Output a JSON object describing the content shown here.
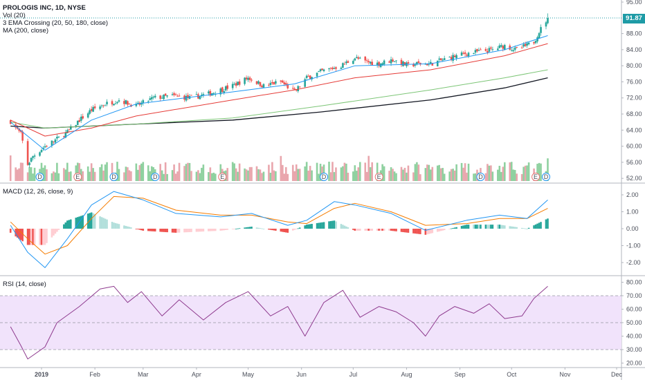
{
  "header": {
    "symbol_line": "PROLOGIS INC, 1D, NYSE",
    "vol_line": "Vol (20)",
    "ema_line": "3 EMA Crossing (20, 50, 180, close)",
    "ma_line": "MA (200, close)"
  },
  "last_price_label": "91.87",
  "panes": {
    "macd_label": "MACD (12, 26, close, 9)",
    "rsi_label": "RSI (14, close)"
  },
  "colors": {
    "candle_up": "#26a69a",
    "candle_down": "#ef5350",
    "ema_fast": "#2196f3",
    "ema_mid": "#e53935",
    "ema_slow": "#7cc576",
    "ma200": "#131722",
    "macd_line": "#2196f3",
    "signal_line": "#f57c00",
    "rsi_line": "#8e3a8e",
    "rsi_band": "#f1e3fb",
    "last_price": "#1e9ba6"
  },
  "chart_data": [
    {
      "type": "candlestick",
      "title": "PROLOGIS INC, 1D, NYSE",
      "x_ticks": [
        "2019",
        "Feb",
        "Mar",
        "Apr",
        "May",
        "Jun",
        "Jul",
        "Aug",
        "Sep",
        "Oct",
        "Nov",
        "Dec"
      ],
      "y_ticks": [
        "52.00",
        "56.00",
        "60.00",
        "64.00",
        "68.00",
        "72.00",
        "76.00",
        "80.00",
        "84.00",
        "88.00",
        "95.00"
      ],
      "ylim": [
        51,
        96
      ],
      "last_price": 91.87,
      "close_series": [
        {
          "date": "2018-12-14",
          "value": 66.2
        },
        {
          "date": "2018-12-20",
          "value": 63.0
        },
        {
          "date": "2018-12-24",
          "value": 55.5
        },
        {
          "date": "2018-12-27",
          "value": 57.5
        },
        {
          "date": "2019-01-03",
          "value": 60.0
        },
        {
          "date": "2019-01-09",
          "value": 61.5
        },
        {
          "date": "2019-01-16",
          "value": 63.5
        },
        {
          "date": "2019-01-23",
          "value": 66.5
        },
        {
          "date": "2019-01-30",
          "value": 69.0
        },
        {
          "date": "2019-02-07",
          "value": 70.5
        },
        {
          "date": "2019-02-15",
          "value": 71.5
        },
        {
          "date": "2019-02-25",
          "value": 70.0
        },
        {
          "date": "2019-03-07",
          "value": 72.0
        },
        {
          "date": "2019-03-18",
          "value": 72.5
        },
        {
          "date": "2019-03-28",
          "value": 72.0
        },
        {
          "date": "2019-04-08",
          "value": 73.0
        },
        {
          "date": "2019-04-22",
          "value": 75.0
        },
        {
          "date": "2019-05-01",
          "value": 77.0
        },
        {
          "date": "2019-05-10",
          "value": 75.0
        },
        {
          "date": "2019-05-20",
          "value": 76.0
        },
        {
          "date": "2019-05-28",
          "value": 73.5
        },
        {
          "date": "2019-06-04",
          "value": 77.0
        },
        {
          "date": "2019-06-12",
          "value": 78.5
        },
        {
          "date": "2019-06-24",
          "value": 80.0
        },
        {
          "date": "2019-07-02",
          "value": 82.0
        },
        {
          "date": "2019-07-08",
          "value": 81.0
        },
        {
          "date": "2019-07-16",
          "value": 80.5
        },
        {
          "date": "2019-07-24",
          "value": 81.5
        },
        {
          "date": "2019-08-02",
          "value": 80.0
        },
        {
          "date": "2019-08-07",
          "value": 80.5
        },
        {
          "date": "2019-08-15",
          "value": 80.5
        },
        {
          "date": "2019-08-26",
          "value": 82.0
        },
        {
          "date": "2019-09-04",
          "value": 83.0
        },
        {
          "date": "2019-09-12",
          "value": 83.5
        },
        {
          "date": "2019-09-20",
          "value": 84.0
        },
        {
          "date": "2019-09-27",
          "value": 85.0
        },
        {
          "date": "2019-10-03",
          "value": 84.0
        },
        {
          "date": "2019-10-10",
          "value": 85.0
        },
        {
          "date": "2019-10-14",
          "value": 86.0
        },
        {
          "date": "2019-10-17",
          "value": 88.5
        },
        {
          "date": "2019-10-22",
          "value": 91.87
        }
      ],
      "ema20": [
        {
          "date": "2018-12-14",
          "value": 66.0
        },
        {
          "date": "2019-01-03",
          "value": 59.0
        },
        {
          "date": "2019-01-30",
          "value": 66.5
        },
        {
          "date": "2019-02-25",
          "value": 70.5
        },
        {
          "date": "2019-04-22",
          "value": 73.5
        },
        {
          "date": "2019-05-28",
          "value": 75.5
        },
        {
          "date": "2019-07-02",
          "value": 80.0
        },
        {
          "date": "2019-08-15",
          "value": 80.5
        },
        {
          "date": "2019-09-27",
          "value": 84.0
        },
        {
          "date": "2019-10-22",
          "value": 87.5
        }
      ],
      "ema50": [
        {
          "date": "2018-12-14",
          "value": 66.5
        },
        {
          "date": "2019-01-03",
          "value": 62.5
        },
        {
          "date": "2019-01-30",
          "value": 64.5
        },
        {
          "date": "2019-02-25",
          "value": 67.5
        },
        {
          "date": "2019-04-22",
          "value": 71.5
        },
        {
          "date": "2019-05-28",
          "value": 74.0
        },
        {
          "date": "2019-07-02",
          "value": 77.0
        },
        {
          "date": "2019-08-15",
          "value": 79.0
        },
        {
          "date": "2019-09-27",
          "value": 82.5
        },
        {
          "date": "2019-10-22",
          "value": 85.5
        }
      ],
      "ema180": [
        {
          "date": "2018-12-14",
          "value": 66.0
        },
        {
          "date": "2019-01-03",
          "value": 64.5
        },
        {
          "date": "2019-02-25",
          "value": 65.5
        },
        {
          "date": "2019-04-22",
          "value": 67.0
        },
        {
          "date": "2019-06-12",
          "value": 70.0
        },
        {
          "date": "2019-08-15",
          "value": 74.0
        },
        {
          "date": "2019-09-27",
          "value": 77.0
        },
        {
          "date": "2019-10-22",
          "value": 79.0
        }
      ],
      "ma200": [
        {
          "date": "2018-12-14",
          "value": 65.0
        },
        {
          "date": "2019-01-03",
          "value": 64.5
        },
        {
          "date": "2019-02-25",
          "value": 65.5
        },
        {
          "date": "2019-04-22",
          "value": 66.5
        },
        {
          "date": "2019-06-12",
          "value": 68.5
        },
        {
          "date": "2019-08-15",
          "value": 71.5
        },
        {
          "date": "2019-09-27",
          "value": 74.5
        },
        {
          "date": "2019-10-22",
          "value": 77.0
        }
      ],
      "event_markers": [
        {
          "date": "2018-12-31",
          "label": "D"
        },
        {
          "date": "2019-01-22",
          "label": "E"
        },
        {
          "date": "2019-02-12",
          "label": "D"
        },
        {
          "date": "2019-03-08",
          "label": "D"
        },
        {
          "date": "2019-04-16",
          "label": "E"
        },
        {
          "date": "2019-06-14",
          "label": "D"
        },
        {
          "date": "2019-07-16",
          "label": "E"
        },
        {
          "date": "2019-09-13",
          "label": "D"
        },
        {
          "date": "2019-10-15",
          "label": "E"
        },
        {
          "date": "2019-10-21",
          "label": "D"
        }
      ]
    },
    {
      "type": "line",
      "title": "MACD (12, 26, close, 9)",
      "y_ticks": [
        "2.00",
        "1.00",
        "0.00",
        "-1.00",
        "-2.00"
      ],
      "ylim": [
        -3,
        2.8
      ],
      "series": [
        {
          "name": "MACD",
          "points": [
            {
              "date": "2018-12-14",
              "value": 0.2
            },
            {
              "date": "2018-12-24",
              "value": -1.4
            },
            {
              "date": "2019-01-03",
              "value": -2.3
            },
            {
              "date": "2019-01-16",
              "value": -0.6
            },
            {
              "date": "2019-01-30",
              "value": 1.4
            },
            {
              "date": "2019-02-12",
              "value": 2.2
            },
            {
              "date": "2019-03-01",
              "value": 1.7
            },
            {
              "date": "2019-03-20",
              "value": 0.9
            },
            {
              "date": "2019-04-15",
              "value": 0.7
            },
            {
              "date": "2019-05-03",
              "value": 0.9
            },
            {
              "date": "2019-05-24",
              "value": 0.2
            },
            {
              "date": "2019-06-04",
              "value": 0.5
            },
            {
              "date": "2019-06-20",
              "value": 1.6
            },
            {
              "date": "2019-07-02",
              "value": 1.4
            },
            {
              "date": "2019-07-23",
              "value": 0.9
            },
            {
              "date": "2019-08-12",
              "value": -0.1
            },
            {
              "date": "2019-09-05",
              "value": 0.5
            },
            {
              "date": "2019-09-24",
              "value": 0.8
            },
            {
              "date": "2019-10-10",
              "value": 0.6
            },
            {
              "date": "2019-10-22",
              "value": 1.7
            }
          ]
        },
        {
          "name": "Signal",
          "points": [
            {
              "date": "2018-12-14",
              "value": 0.4
            },
            {
              "date": "2018-12-24",
              "value": -0.6
            },
            {
              "date": "2019-01-03",
              "value": -1.5
            },
            {
              "date": "2019-01-16",
              "value": -1.0
            },
            {
              "date": "2019-01-30",
              "value": 0.6
            },
            {
              "date": "2019-02-12",
              "value": 1.9
            },
            {
              "date": "2019-03-01",
              "value": 1.8
            },
            {
              "date": "2019-03-20",
              "value": 1.1
            },
            {
              "date": "2019-04-15",
              "value": 0.8
            },
            {
              "date": "2019-05-03",
              "value": 0.8
            },
            {
              "date": "2019-05-24",
              "value": 0.4
            },
            {
              "date": "2019-06-04",
              "value": 0.3
            },
            {
              "date": "2019-06-20",
              "value": 1.2
            },
            {
              "date": "2019-07-02",
              "value": 1.5
            },
            {
              "date": "2019-07-23",
              "value": 1.0
            },
            {
              "date": "2019-08-12",
              "value": 0.2
            },
            {
              "date": "2019-09-05",
              "value": 0.3
            },
            {
              "date": "2019-09-24",
              "value": 0.6
            },
            {
              "date": "2019-10-10",
              "value": 0.6
            },
            {
              "date": "2019-10-22",
              "value": 1.2
            }
          ]
        }
      ]
    },
    {
      "type": "line",
      "title": "RSI (14, close)",
      "y_ticks": [
        "80.00",
        "70.00",
        "60.00",
        "50.00",
        "40.00",
        "30.00",
        "20.00"
      ],
      "ylim": [
        18,
        83
      ],
      "band": [
        30,
        70
      ],
      "series": [
        {
          "name": "RSI",
          "points": [
            {
              "date": "2018-12-14",
              "value": 47
            },
            {
              "date": "2018-12-20",
              "value": 33
            },
            {
              "date": "2018-12-24",
              "value": 23
            },
            {
              "date": "2019-01-03",
              "value": 32
            },
            {
              "date": "2019-01-10",
              "value": 50
            },
            {
              "date": "2019-01-23",
              "value": 62
            },
            {
              "date": "2019-02-04",
              "value": 75
            },
            {
              "date": "2019-02-12",
              "value": 77
            },
            {
              "date": "2019-02-20",
              "value": 65
            },
            {
              "date": "2019-02-28",
              "value": 73
            },
            {
              "date": "2019-03-12",
              "value": 55
            },
            {
              "date": "2019-03-22",
              "value": 67
            },
            {
              "date": "2019-04-05",
              "value": 52
            },
            {
              "date": "2019-04-18",
              "value": 65
            },
            {
              "date": "2019-05-01",
              "value": 73
            },
            {
              "date": "2019-05-14",
              "value": 55
            },
            {
              "date": "2019-05-24",
              "value": 62
            },
            {
              "date": "2019-06-03",
              "value": 40
            },
            {
              "date": "2019-06-14",
              "value": 65
            },
            {
              "date": "2019-06-25",
              "value": 74
            },
            {
              "date": "2019-07-05",
              "value": 54
            },
            {
              "date": "2019-07-16",
              "value": 62
            },
            {
              "date": "2019-07-26",
              "value": 58
            },
            {
              "date": "2019-08-05",
              "value": 50
            },
            {
              "date": "2019-08-12",
              "value": 40
            },
            {
              "date": "2019-08-20",
              "value": 55
            },
            {
              "date": "2019-08-29",
              "value": 62
            },
            {
              "date": "2019-09-09",
              "value": 57
            },
            {
              "date": "2019-09-18",
              "value": 64
            },
            {
              "date": "2019-09-27",
              "value": 53
            },
            {
              "date": "2019-10-07",
              "value": 55
            },
            {
              "date": "2019-10-14",
              "value": 68
            },
            {
              "date": "2019-10-22",
              "value": 77
            }
          ]
        }
      ]
    }
  ]
}
